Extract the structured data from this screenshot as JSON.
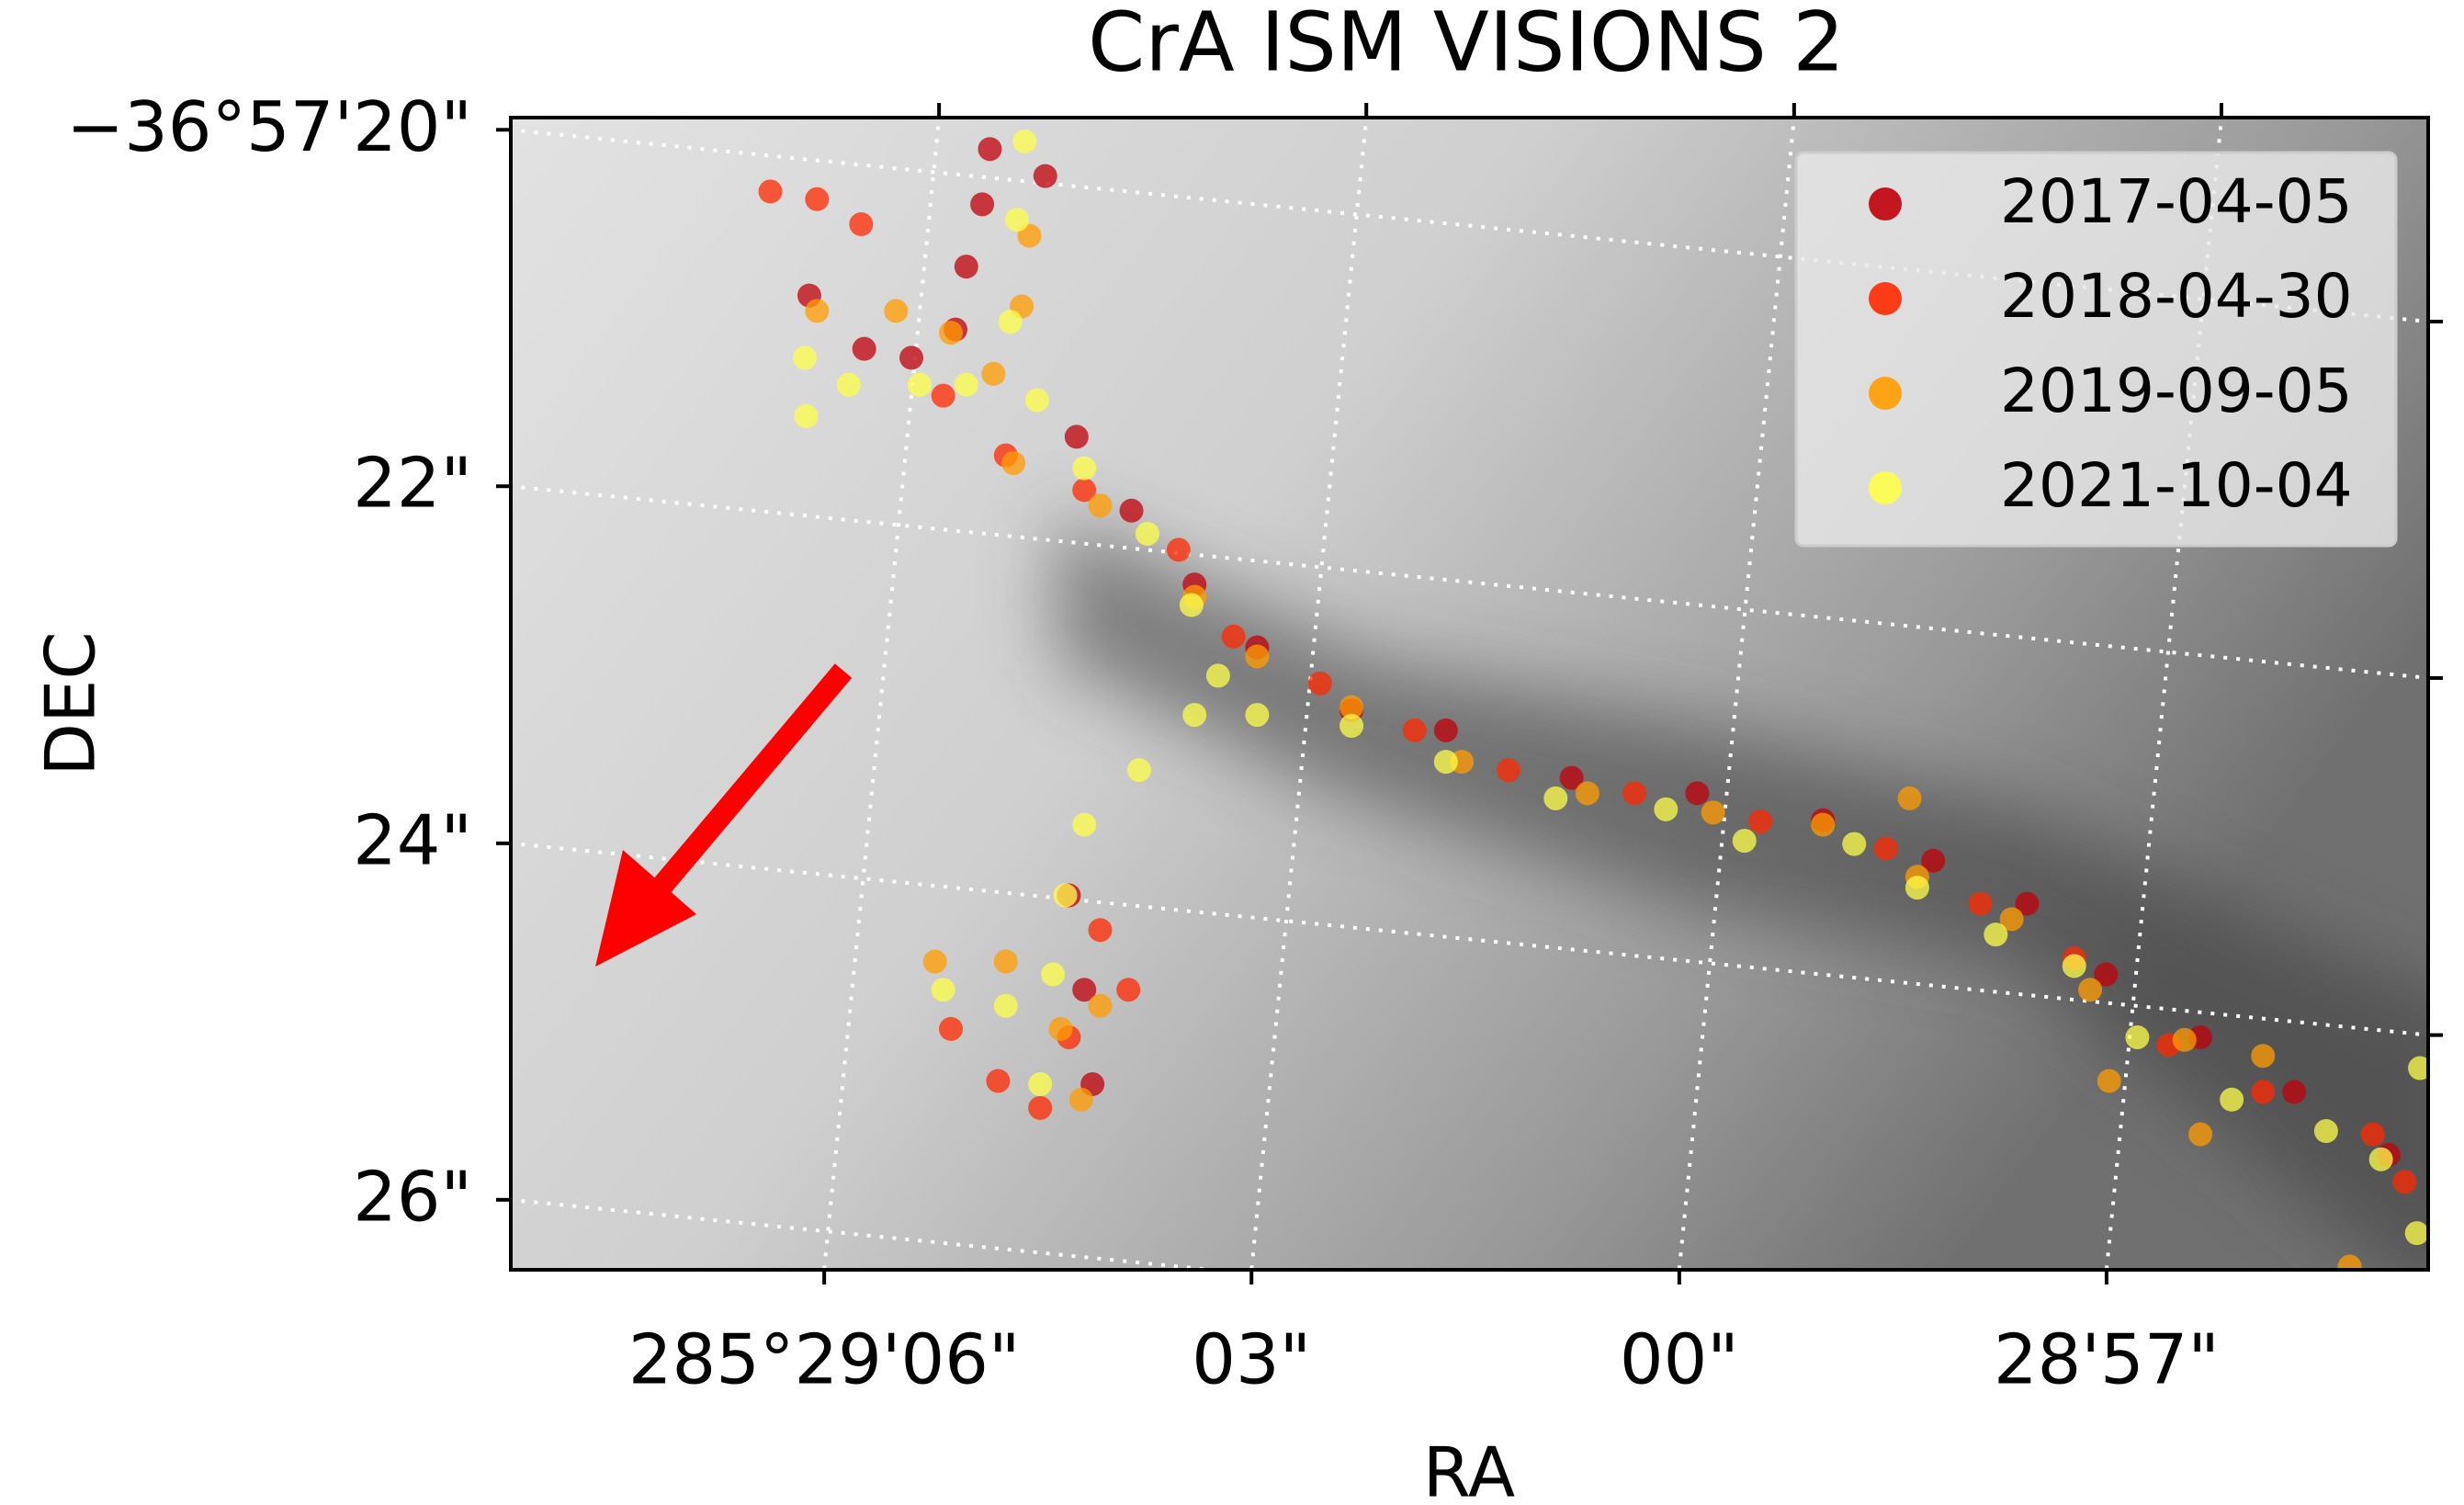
{
  "chart_data": {
    "type": "scatter",
    "title": "CrA ISM VISIONS 2",
    "xlabel": "RA",
    "ylabel": "DEC",
    "xlim": [
      285.485611,
      285.481873
    ],
    "ylim": [
      -36.957331,
      -36.955537
    ],
    "xticks": [
      {
        "value": 285.485,
        "label": "285°29'06\""
      },
      {
        "value": 285.484167,
        "label": "03\""
      },
      {
        "value": 285.483333,
        "label": "00\""
      },
      {
        "value": 285.4825,
        "label": "28'57\""
      }
    ],
    "yticks": [
      {
        "value": -36.957222,
        "label": "26\""
      },
      {
        "value": -36.956667,
        "label": "24\""
      },
      {
        "value": -36.956111,
        "label": "22\""
      },
      {
        "value": -36.955556,
        "label": "−36°57'20\""
      }
    ],
    "grid": true,
    "legend": "upper right",
    "series": [
      {
        "name": "2017-04-05",
        "color": "#c0000a",
        "x": [
          285.484677,
          285.484692,
          285.484723,
          285.484744,
          285.48483,
          285.484922,
          285.485029,
          285.484569,
          285.484508,
          285.484401,
          285.484278,
          285.484156,
          285.483972,
          285.483788,
          285.483543,
          285.483298,
          285.483053,
          285.482838,
          285.482655,
          285.482501,
          285.482317,
          285.482134,
          285.48195,
          285.484523,
          285.484493,
          285.484477
        ],
        "values": [
          -36.955586,
          -36.955672,
          -36.955769,
          -36.955867,
          -36.955911,
          -36.955897,
          -36.955814,
          -36.955628,
          -36.956034,
          -36.956149,
          -36.956264,
          -36.956362,
          -36.95646,
          -36.956491,
          -36.956565,
          -36.956589,
          -36.956631,
          -36.956694,
          -36.956761,
          -36.956871,
          -36.956969,
          -36.957054,
          -36.957152,
          -36.956748,
          -36.956895,
          -36.957042
        ]
      },
      {
        "name": "2018-04-30",
        "color": "#ff2a00",
        "x": [
          285.485105,
          285.485014,
          285.484928,
          285.484768,
          285.484646,
          285.484493,
          285.484309,
          285.484202,
          285.484033,
          285.483849,
          285.483666,
          285.48342,
          285.483175,
          285.48293,
          285.482746,
          285.482563,
          285.482379,
          285.482195,
          285.481981,
          285.481919,
          285.484753,
          285.484661,
          285.484579,
          285.484523,
          285.484462,
          285.484407
        ],
        "values": [
          -36.955652,
          -36.955664,
          -36.955703,
          -36.95597,
          -36.956063,
          -36.956117,
          -36.95621,
          -36.956345,
          -36.956418,
          -36.956491,
          -36.956553,
          -36.956589,
          -36.956633,
          -36.956675,
          -36.956761,
          -36.956846,
          -36.956981,
          -36.957054,
          -36.95712,
          -36.957194,
          -36.956956,
          -36.957037,
          -36.957079,
          -36.956969,
          -36.956802,
          -36.956895
        ]
      },
      {
        "name": "2019-09-05",
        "color": "#ff9c00",
        "x": [
          285.4846,
          285.484615,
          285.48467,
          285.484753,
          285.48486,
          285.485014,
          285.484631,
          285.484462,
          285.484278,
          285.484156,
          285.483972,
          285.483757,
          285.483512,
          285.483267,
          285.483053,
          285.482884,
          285.482869,
          285.482685,
          285.482532,
          285.482495,
          285.482348,
          285.482195,
          285.482317,
          285.482026,
          285.484784,
          285.484646,
          285.484539,
          285.484499,
          285.484462
        ],
        "values": [
          -36.955721,
          -36.955831,
          -36.955936,
          -36.955872,
          -36.955838,
          -36.955838,
          -36.956075,
          -36.956141,
          -36.956283,
          -36.956376,
          -36.956455,
          -36.95654,
          -36.956589,
          -36.956619,
          -36.956638,
          -36.956597,
          -36.956719,
          -36.956785,
          -36.956895,
          -36.957037,
          -36.956973,
          -36.956998,
          -36.95712,
          -36.957326,
          -36.956851,
          -36.956851,
          -36.956956,
          -36.957066,
          -36.95692
        ]
      },
      {
        "name": "2021-10-04",
        "color": "#ffff4a",
        "x": [
          285.484609,
          285.484624,
          285.484637,
          285.484723,
          285.484814,
          285.484585,
          285.484493,
          285.48437,
          285.484284,
          285.484232,
          285.484156,
          285.483972,
          285.483788,
          285.483574,
          285.483359,
          285.483206,
          285.482992,
          285.482869,
          285.482716,
          285.482563,
          285.48244,
          285.482256,
          285.482072,
          285.481965,
          285.481895,
          285.481889,
          285.484278,
          285.484386,
          285.484493,
          285.48453,
          285.484554,
          285.484579,
          285.484768,
          285.484646,
          285.485038,
          285.485035,
          285.484952
        ],
        "values": [
          -36.955574,
          -36.955696,
          -36.955855,
          -36.955953,
          -36.955953,
          -36.955977,
          -36.956083,
          -36.956185,
          -36.956296,
          -36.956406,
          -36.956467,
          -36.956484,
          -36.95654,
          -36.956597,
          -36.956614,
          -36.956663,
          -36.956668,
          -36.956736,
          -36.956809,
          -36.956858,
          -36.956969,
          -36.957066,
          -36.957115,
          -36.957159,
          -36.957274,
          -36.957017,
          -36.956467,
          -36.956553,
          -36.956638,
          -36.956748,
          -36.956871,
          -36.957042,
          -36.956895,
          -36.95692,
          -36.955911,
          -36.956002,
          -36.955953
        ]
      }
    ]
  }
}
